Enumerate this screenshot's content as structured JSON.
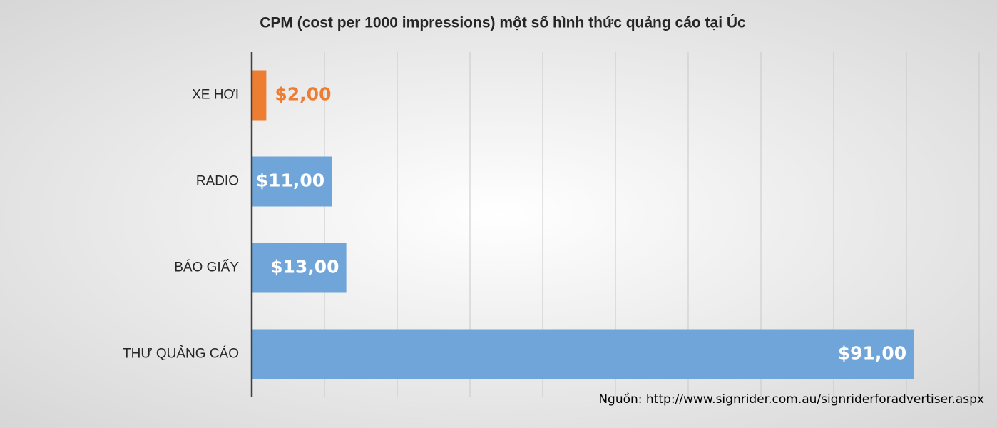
{
  "chart_data": {
    "type": "hbar",
    "title": "CPM (cost per 1000 impressions) một số hình thức quảng cáo tại Úc",
    "source": "Nguồn: http://www.signrider.com.au/signriderforadvertiser.aspx",
    "categories": [
      "XE HƠI",
      "RADIO",
      "BÁO GIẤY",
      "THƯ QUẢNG CÁO"
    ],
    "values": [
      2,
      11,
      13,
      91
    ],
    "value_labels": [
      "$2,00",
      "$11,00",
      "$13,00",
      "$91,00"
    ],
    "colors": [
      "#ed7d31",
      "#6fa5d8",
      "#6fa5d8",
      "#6fa5d8"
    ],
    "xlim": [
      0,
      100
    ],
    "xticks": [
      0,
      10,
      20,
      30,
      40,
      50,
      60,
      70,
      80,
      90,
      100
    ],
    "grid": true
  }
}
